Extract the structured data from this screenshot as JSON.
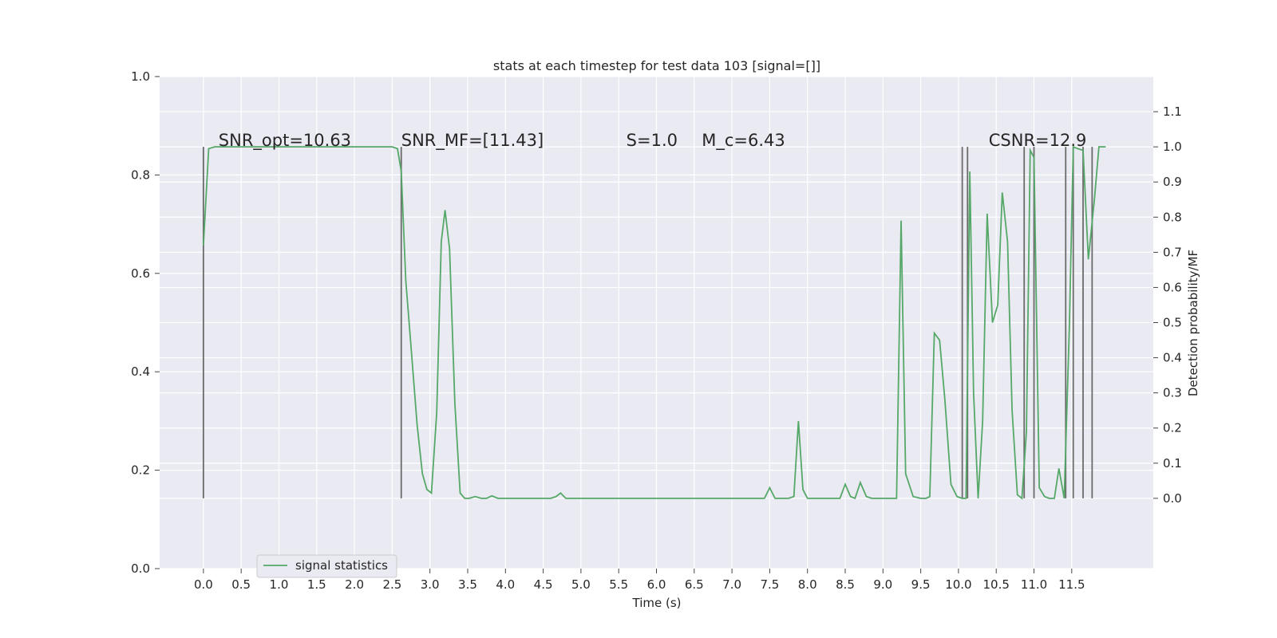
{
  "chart_data": {
    "type": "line",
    "title": "stats at each timestep for test data 103 [signal=[]]",
    "xlabel": "Time (s)",
    "ylabel_left": "",
    "ylabel_right": "Detection probability/MF",
    "xlim": [
      -0.58,
      12.58
    ],
    "ylim_left": [
      0.0,
      1.0
    ],
    "ylim_right": [
      -0.2,
      1.2
    ],
    "x_ticks": [
      0.0,
      0.5,
      1.0,
      1.5,
      2.0,
      2.5,
      3.0,
      3.5,
      4.0,
      4.5,
      5.0,
      5.5,
      6.0,
      6.5,
      7.0,
      7.5,
      8.0,
      8.5,
      9.0,
      9.5,
      10.0,
      10.5,
      11.0,
      11.5
    ],
    "x_tick_labels": [
      "0.0",
      "0.5",
      "1.0",
      "1.5",
      "2.0",
      "2.5",
      "3.0",
      "3.5",
      "4.0",
      "4.5",
      "5.0",
      "5.5",
      "6.0",
      "6.5",
      "7.0",
      "7.5",
      "8.0",
      "8.5",
      "9.0",
      "9.5",
      "10.0",
      "10.5",
      "11.0",
      "11.5"
    ],
    "y_left_ticks": [
      0.0,
      0.2,
      0.4,
      0.6,
      0.8,
      1.0
    ],
    "y_left_tick_labels": [
      "0.0",
      "0.2",
      "0.4",
      "0.6",
      "0.8",
      "1.0"
    ],
    "y_right_ticks": [
      0.0,
      0.1,
      0.2,
      0.3,
      0.4,
      0.5,
      0.6,
      0.7,
      0.8,
      0.9,
      1.0,
      1.1
    ],
    "y_right_tick_labels": [
      "0.0",
      "0.1",
      "0.2",
      "0.3",
      "0.4",
      "0.5",
      "0.6",
      "0.7",
      "0.8",
      "0.9",
      "1.0",
      "1.1"
    ],
    "grid": true,
    "legend": {
      "placement": "lower-left",
      "entries": [
        "signal statistics"
      ]
    },
    "colors": {
      "background": "#eaeaf2",
      "grid": "#ffffff",
      "series": "#55a868",
      "vline": "#6b6b6b",
      "text": "#262626"
    },
    "annotations": [
      {
        "text": "SNR_opt=10.63",
        "x": 0.2,
        "y": 1.0
      },
      {
        "text": "SNR_MF=[11.43]",
        "x": 2.62,
        "y": 1.0
      },
      {
        "text": "S=1.0",
        "x": 5.6,
        "y": 1.0
      },
      {
        "text": "M_c=6.43",
        "x": 6.6,
        "y": 1.0
      },
      {
        "text": "CSNR=12.9",
        "x": 10.4,
        "y": 1.0
      }
    ],
    "vertical_lines_x": [
      0.0,
      2.62,
      10.05,
      10.12,
      10.87,
      11.0,
      11.42,
      11.52,
      11.65,
      11.77
    ],
    "series": [
      {
        "name": "signal statistics",
        "axis": "right",
        "x": [
          0.0,
          0.07,
          0.15,
          0.25,
          0.4,
          0.6,
          0.8,
          1.0,
          1.2,
          1.4,
          1.6,
          1.8,
          2.0,
          2.2,
          2.4,
          2.5,
          2.57,
          2.62,
          2.68,
          2.75,
          2.83,
          2.9,
          2.96,
          3.02,
          3.09,
          3.15,
          3.2,
          3.26,
          3.33,
          3.4,
          3.46,
          3.52,
          3.6,
          3.68,
          3.75,
          3.82,
          3.9,
          4.0,
          4.2,
          4.4,
          4.6,
          4.67,
          4.73,
          4.8,
          4.9,
          5.1,
          5.3,
          5.5,
          5.8,
          6.1,
          6.4,
          6.7,
          7.0,
          7.2,
          7.43,
          7.5,
          7.57,
          7.65,
          7.75,
          7.82,
          7.88,
          7.94,
          8.0,
          8.1,
          8.3,
          8.43,
          8.5,
          8.57,
          8.63,
          8.7,
          8.78,
          8.85,
          9.0,
          9.12,
          9.18,
          9.24,
          9.3,
          9.4,
          9.5,
          9.57,
          9.62,
          9.68,
          9.75,
          9.82,
          9.9,
          9.98,
          10.05,
          10.1,
          10.15,
          10.2,
          10.26,
          10.32,
          10.38,
          10.45,
          10.52,
          10.58,
          10.65,
          10.71,
          10.78,
          10.84,
          10.9,
          10.95,
          11.0,
          11.07,
          11.14,
          11.2,
          11.27,
          11.33,
          11.4,
          11.47,
          11.52,
          11.58,
          11.65,
          11.72,
          11.8,
          11.86,
          11.95
        ],
        "y": [
          0.72,
          0.995,
          1.0,
          1.0,
          1.0,
          1.0,
          1.0,
          1.0,
          1.0,
          1.0,
          1.0,
          1.0,
          1.0,
          1.0,
          1.0,
          1.0,
          0.995,
          0.93,
          0.62,
          0.43,
          0.21,
          0.07,
          0.025,
          0.015,
          0.245,
          0.73,
          0.82,
          0.71,
          0.27,
          0.015,
          0.0,
          0.0,
          0.005,
          0.0,
          0.0,
          0.007,
          0.0,
          0.0,
          0.0,
          0.0,
          0.0,
          0.005,
          0.015,
          0.0,
          0.0,
          0.0,
          0.0,
          0.0,
          0.0,
          0.0,
          0.0,
          0.0,
          0.0,
          0.0,
          0.0,
          0.03,
          0.0,
          0.0,
          0.0,
          0.005,
          0.22,
          0.025,
          0.0,
          0.0,
          0.0,
          0.0,
          0.04,
          0.005,
          0.0,
          0.045,
          0.005,
          0.0,
          0.0,
          0.0,
          0.0,
          0.79,
          0.07,
          0.005,
          0.0,
          0.0,
          0.005,
          0.47,
          0.45,
          0.28,
          0.04,
          0.005,
          0.0,
          0.0,
          0.93,
          0.3,
          0.0,
          0.22,
          0.81,
          0.5,
          0.55,
          0.87,
          0.73,
          0.25,
          0.01,
          0.0,
          0.19,
          0.99,
          0.97,
          0.03,
          0.005,
          0.0,
          0.0,
          0.085,
          0.0,
          0.5,
          1.0,
          0.995,
          0.99,
          0.68,
          0.85,
          1.0,
          1.0
        ]
      }
    ]
  }
}
